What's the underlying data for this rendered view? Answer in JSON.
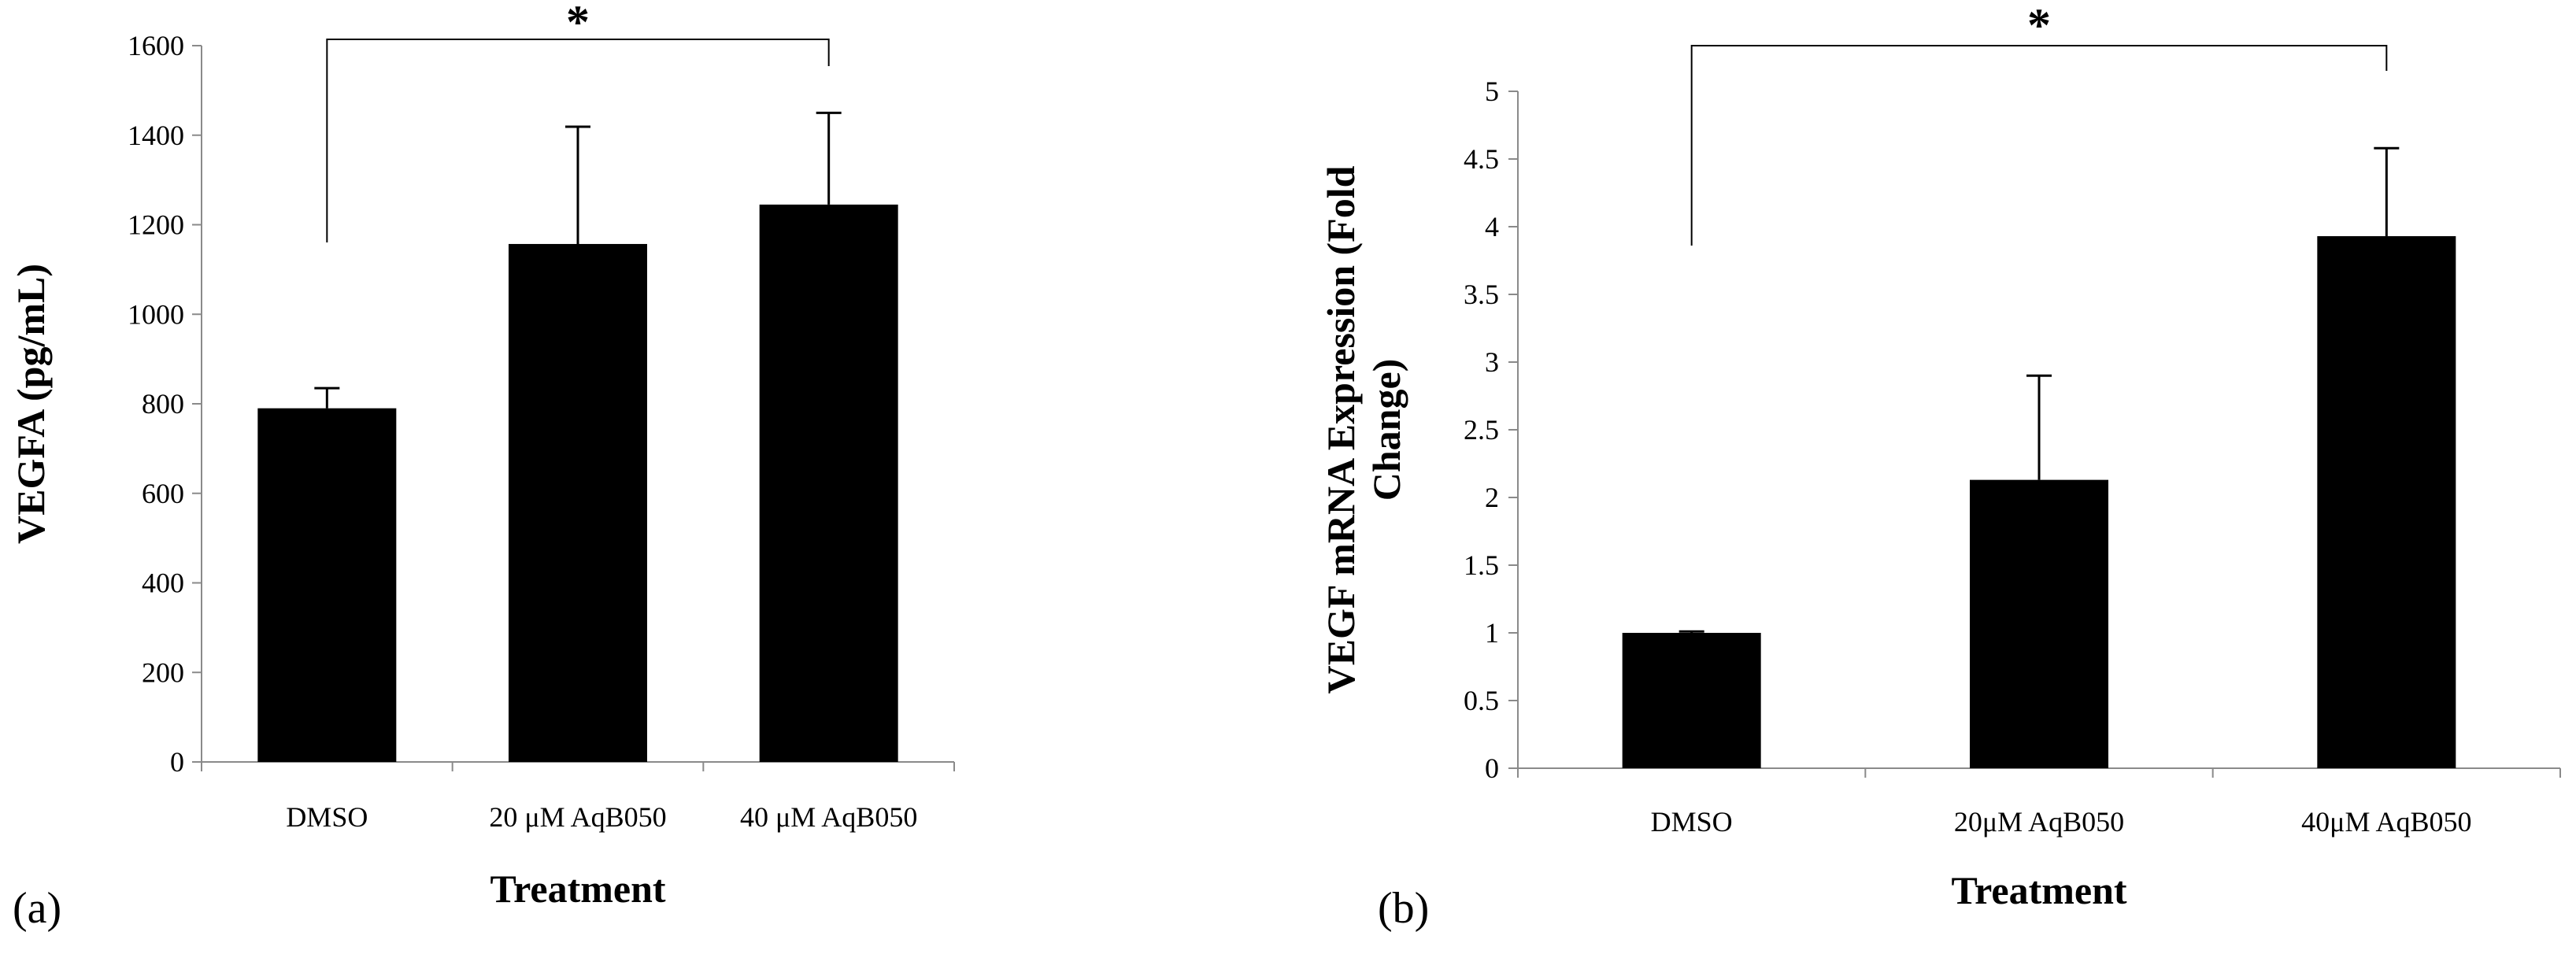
{
  "chart_data": [
    {
      "type": "bar",
      "panel_label": "(a)",
      "categories": [
        "DMSO",
        "20 μM AqB050",
        "40 μM AqB050"
      ],
      "values": [
        790,
        1157,
        1245
      ],
      "error": [
        45,
        262,
        205
      ],
      "xlabel": "Treatment",
      "ylabel": "VEGFA (pg/mL)",
      "ylim": [
        0,
        1600
      ],
      "yticks": [
        "0",
        "200",
        "400",
        "600",
        "800",
        "1000",
        "1200",
        "1400",
        "1600"
      ],
      "significance": {
        "from": 0,
        "to": 2,
        "label": "*"
      },
      "colors": {
        "bars": "#000000"
      },
      "grid": false,
      "legend": "none"
    },
    {
      "type": "bar",
      "panel_label": "(b)",
      "categories": [
        "DMSO",
        "20μM AqB050",
        "40μM AqB050"
      ],
      "values": [
        1.0,
        2.13,
        3.93
      ],
      "error": [
        0.01,
        0.77,
        0.65
      ],
      "xlabel": "Treatment",
      "ylabel_lines": [
        "VEGF mRNA Expression (Fold",
        "Change)"
      ],
      "ylim": [
        0,
        5
      ],
      "yticks": [
        "0",
        "0.5",
        "1",
        "1.5",
        "2",
        "2.5",
        "3",
        "3.5",
        "4",
        "4.5",
        "5"
      ],
      "significance": {
        "from": 0,
        "to": 2,
        "label": "*"
      },
      "colors": {
        "bars": "#000000"
      },
      "grid": false,
      "legend": "none"
    }
  ]
}
